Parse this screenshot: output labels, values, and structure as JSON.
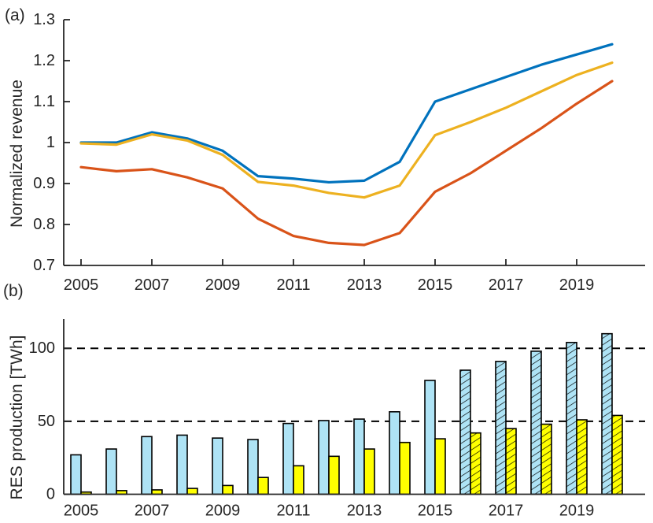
{
  "figure": {
    "panel_a_tag": "(a)",
    "panel_b_tag": "(b)",
    "axis_color": "#262626",
    "text_color": "#262626",
    "background": "#ffffff"
  },
  "chart_data": [
    {
      "type": "line",
      "panel": "a",
      "title": "",
      "xlabel": "",
      "ylabel": "Normalized revenue",
      "x": [
        2005,
        2006,
        2007,
        2008,
        2009,
        2010,
        2011,
        2012,
        2013,
        2014,
        2015,
        2016,
        2017,
        2018,
        2019,
        2020
      ],
      "ylim": [
        0.7,
        1.3
      ],
      "xlim": [
        2004.5,
        2020.9
      ],
      "grid": false,
      "legend_position": "none",
      "xticks": [
        {
          "value": 2005,
          "label": "2005"
        },
        {
          "value": 2007,
          "label": "2007"
        },
        {
          "value": 2009,
          "label": "2009"
        },
        {
          "value": 2011,
          "label": "2011"
        },
        {
          "value": 2013,
          "label": "2013"
        },
        {
          "value": 2015,
          "label": "2015"
        },
        {
          "value": 2017,
          "label": "2017"
        },
        {
          "value": 2019,
          "label": "2019"
        }
      ],
      "yticks": [
        {
          "value": 0.7,
          "label": "0.7"
        },
        {
          "value": 0.8,
          "label": "0.8"
        },
        {
          "value": 0.9,
          "label": "0.9"
        },
        {
          "value": 1.0,
          "label": "1"
        },
        {
          "value": 1.1,
          "label": "1.1"
        },
        {
          "value": 1.2,
          "label": "1.2"
        },
        {
          "value": 1.3,
          "label": "1.3"
        }
      ],
      "series": [
        {
          "name": "blue-line",
          "color": "#0072BD",
          "values": [
            1.0,
            1.0,
            1.025,
            1.01,
            0.98,
            0.918,
            0.912,
            0.903,
            0.907,
            0.953,
            1.1,
            1.13,
            1.16,
            1.19,
            1.215,
            1.24
          ]
        },
        {
          "name": "yellow-line",
          "color": "#EDB120",
          "values": [
            0.998,
            0.995,
            1.02,
            1.005,
            0.97,
            0.904,
            0.895,
            0.877,
            0.866,
            0.895,
            1.018,
            1.05,
            1.085,
            1.125,
            1.165,
            1.195
          ]
        },
        {
          "name": "red-line",
          "color": "#D95319",
          "values": [
            0.94,
            0.93,
            0.935,
            0.915,
            0.888,
            0.814,
            0.772,
            0.755,
            0.75,
            0.779,
            0.88,
            0.925,
            0.98,
            1.035,
            1.095,
            1.15
          ]
        }
      ]
    },
    {
      "type": "bar",
      "panel": "b",
      "title": "",
      "xlabel": "",
      "ylabel": "RES production [TWh]",
      "categories": [
        2005,
        2006,
        2007,
        2008,
        2009,
        2010,
        2011,
        2012,
        2013,
        2014,
        2015,
        2016,
        2017,
        2018,
        2019,
        2020
      ],
      "ylim": [
        0,
        120
      ],
      "grid": false,
      "legend_position": "none",
      "gridlines": {
        "values": [
          50,
          100
        ],
        "style": "dashed",
        "color": "#000000"
      },
      "hatched_from": 2016,
      "xticks": [
        {
          "value": 2005,
          "label": "2005"
        },
        {
          "value": 2007,
          "label": "2007"
        },
        {
          "value": 2009,
          "label": "2009"
        },
        {
          "value": 2011,
          "label": "2011"
        },
        {
          "value": 2013,
          "label": "2013"
        },
        {
          "value": 2015,
          "label": "2015"
        },
        {
          "value": 2017,
          "label": "2017"
        },
        {
          "value": 2019,
          "label": "2019"
        }
      ],
      "yticks": [
        {
          "value": 0,
          "label": "0"
        },
        {
          "value": 50,
          "label": "50"
        },
        {
          "value": 100,
          "label": "100"
        }
      ],
      "series": [
        {
          "name": "light-blue-bars",
          "color": "#AEE3F5",
          "edge": "#000000",
          "values": [
            27,
            31,
            39.5,
            40.5,
            38.5,
            37.5,
            48.5,
            50.5,
            51.5,
            56.5,
            78,
            85,
            91,
            98,
            104,
            110
          ]
        },
        {
          "name": "yellow-bars",
          "color": "#FFFF00",
          "edge": "#000000",
          "values": [
            1.5,
            2.5,
            3,
            4,
            6,
            11.5,
            19.5,
            26,
            31,
            35.5,
            38,
            42,
            45,
            48,
            51,
            54
          ]
        }
      ]
    }
  ]
}
